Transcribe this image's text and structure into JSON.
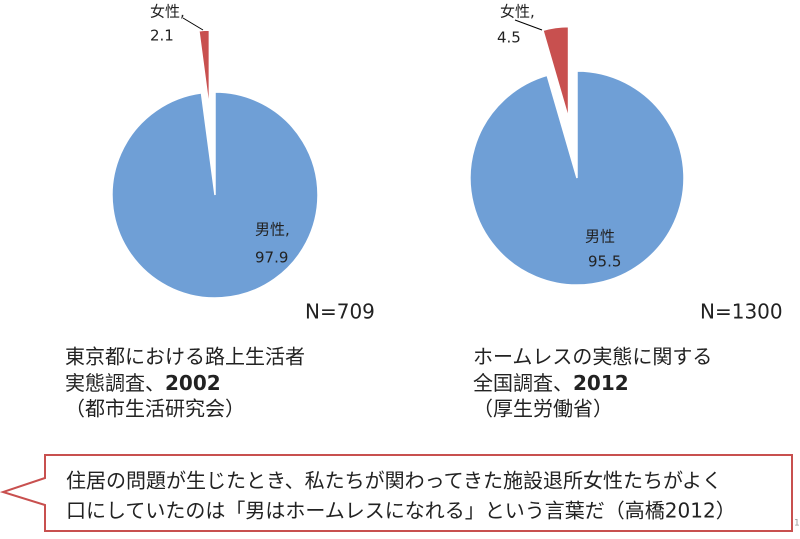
{
  "chart_data": [
    {
      "type": "pie",
      "categories": [
        "男性,",
        "女性,"
      ],
      "values": [
        97.9,
        2.1
      ],
      "colors": [
        "#6f9fd6",
        "#c8504f"
      ],
      "note": "N=709",
      "caption": {
        "line1": "東京都における路上生活者",
        "line2": "実態調査、",
        "year": "2002",
        "source": "（都市生活研究会）"
      }
    },
    {
      "type": "pie",
      "categories": [
        "男性",
        "女性,"
      ],
      "values": [
        95.5,
        4.5
      ],
      "colors": [
        "#6f9fd6",
        "#c8504f"
      ],
      "note": "N=1300",
      "caption": {
        "line1": "ホームレスの実態に関する",
        "line2": "全国調査、",
        "year": "2012",
        "source": "（厚生労働省）"
      }
    }
  ],
  "callout": {
    "lines": [
      "住居の問題が生じたとき、私たちが関わってきた施設退所女性たちがよく",
      "口にしていたのは「男はホームレスになれる」という言葉だ（高橋2012）"
    ]
  },
  "page_number": "1"
}
